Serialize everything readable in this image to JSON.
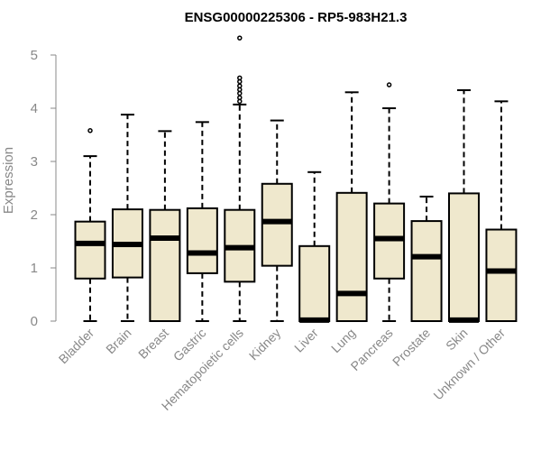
{
  "chart_data": {
    "type": "boxplot",
    "title": "ENSG00000225306 - RP5-983H21.3",
    "xlabel": "",
    "ylabel": "Expression",
    "ylim": [
      0,
      5
    ],
    "yticks": [
      0,
      1,
      2,
      3,
      4,
      5
    ],
    "box_color": "#efe8cd",
    "categories": [
      "Bladder",
      "Brain",
      "Breast",
      "Gastric",
      "Hematopoietic cells",
      "Kidney",
      "Liver",
      "Lung",
      "Pancreas",
      "Prostate",
      "Skin",
      "Unknown / Other"
    ],
    "boxes": [
      {
        "min": 0,
        "q1": 0.8,
        "median": 1.46,
        "q3": 1.87,
        "max": 3.1,
        "outliers": [
          3.58
        ]
      },
      {
        "min": 0,
        "q1": 0.82,
        "median": 1.44,
        "q3": 2.1,
        "max": 3.88,
        "outliers": []
      },
      {
        "min": 0,
        "q1": 0,
        "median": 1.56,
        "q3": 2.09,
        "max": 3.57,
        "outliers": []
      },
      {
        "min": 0,
        "q1": 0.9,
        "median": 1.28,
        "q3": 2.12,
        "max": 3.74,
        "outliers": []
      },
      {
        "min": 0,
        "q1": 0.74,
        "median": 1.38,
        "q3": 2.09,
        "max": 4.07,
        "outliers": [
          4.13,
          4.2,
          4.28,
          4.35,
          4.42,
          4.5,
          4.57,
          5.32
        ]
      },
      {
        "min": 0,
        "q1": 1.04,
        "median": 1.87,
        "q3": 2.58,
        "max": 3.77,
        "outliers": []
      },
      {
        "min": 0,
        "q1": 0,
        "median": 0.02,
        "q3": 1.41,
        "max": 2.8,
        "outliers": []
      },
      {
        "min": 0,
        "q1": 0,
        "median": 0.52,
        "q3": 2.41,
        "max": 4.3,
        "outliers": []
      },
      {
        "min": 0,
        "q1": 0.8,
        "median": 1.55,
        "q3": 2.21,
        "max": 4.0,
        "outliers": [
          4.44
        ]
      },
      {
        "min": 0,
        "q1": 0,
        "median": 1.21,
        "q3": 1.88,
        "max": 2.34,
        "outliers": []
      },
      {
        "min": 0,
        "q1": 0,
        "median": 0.02,
        "q3": 2.4,
        "max": 4.34,
        "outliers": []
      },
      {
        "min": 0,
        "q1": 0,
        "median": 0.94,
        "q3": 1.72,
        "max": 4.13,
        "outliers": []
      }
    ]
  }
}
